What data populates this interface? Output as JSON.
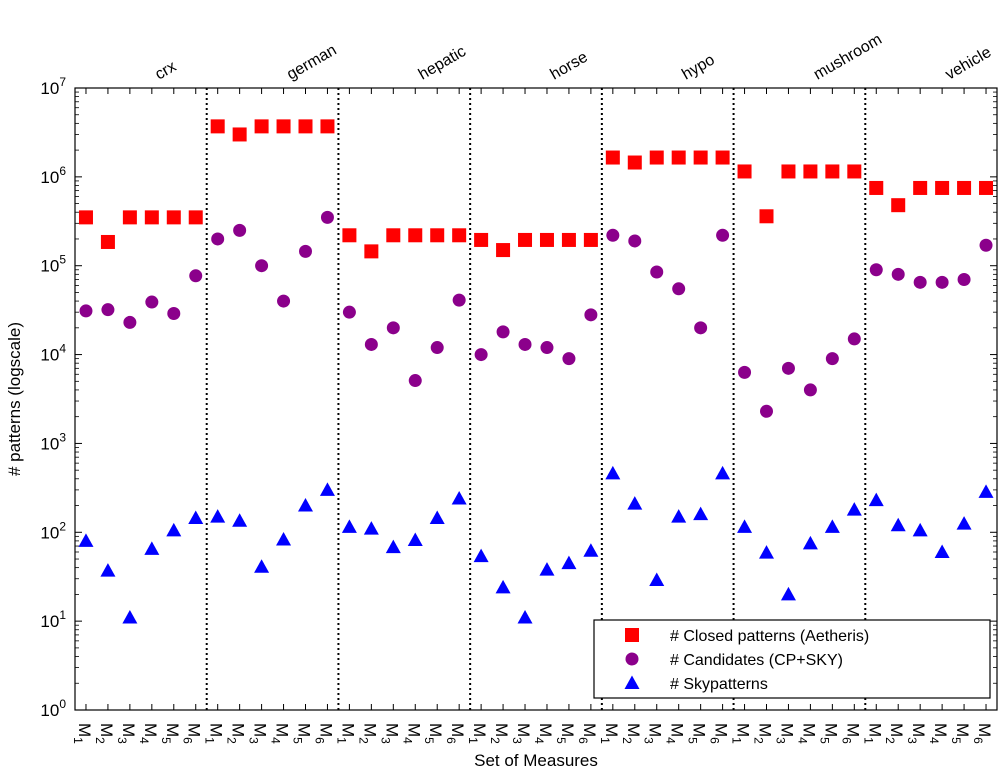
{
  "chart_data": {
    "type": "scatter",
    "ylabel": "# patterns (logscale)",
    "xlabel": "Set of Measures",
    "y_scale": "log",
    "ylim": [
      1,
      10000000
    ],
    "y_ticks": [
      {
        "value": 1,
        "base": "10",
        "exp": "0"
      },
      {
        "value": 10,
        "base": "10",
        "exp": "1"
      },
      {
        "value": 100,
        "base": "10",
        "exp": "2"
      },
      {
        "value": 1000,
        "base": "10",
        "exp": "3"
      },
      {
        "value": 10000,
        "base": "10",
        "exp": "4"
      },
      {
        "value": 100000,
        "base": "10",
        "exp": "5"
      },
      {
        "value": 1000000,
        "base": "10",
        "exp": "6"
      },
      {
        "value": 10000000,
        "base": "10",
        "exp": "7"
      }
    ],
    "x_tick_prefix": "M",
    "measures": [
      "1",
      "2",
      "3",
      "4",
      "5",
      "6"
    ],
    "groups": [
      "crx",
      "german",
      "hepatic",
      "horse",
      "hypo",
      "mushroom",
      "vehicle"
    ],
    "legend_position": "bottom-right",
    "series": [
      {
        "name": "# Closed patterns (Aetheris)",
        "marker": "square",
        "color": "#ff0000",
        "values": [
          [
            350000,
            185000,
            350000,
            350000,
            350000,
            350000
          ],
          [
            3700000,
            3000000,
            3700000,
            3700000,
            3700000,
            3700000
          ],
          [
            220000,
            145000,
            220000,
            220000,
            220000,
            220000
          ],
          [
            195000,
            150000,
            195000,
            195000,
            195000,
            195000
          ],
          [
            1650000,
            1450000,
            1650000,
            1650000,
            1650000,
            1650000
          ],
          [
            1150000,
            360000,
            1150000,
            1150000,
            1150000,
            1150000
          ],
          [
            750000,
            480000,
            750000,
            750000,
            750000,
            750000
          ]
        ]
      },
      {
        "name": "# Candidates (CP+SKY)",
        "marker": "circle",
        "color": "#8b008b",
        "values": [
          [
            31000,
            32000,
            23000,
            39000,
            29000,
            77000
          ],
          [
            200000,
            250000,
            100000,
            40000,
            145000,
            350000
          ],
          [
            30000,
            13000,
            20000,
            5100,
            12000,
            41000
          ],
          [
            10000,
            18000,
            13000,
            12000,
            9000,
            28000
          ],
          [
            220000,
            190000,
            85000,
            55000,
            20000,
            220000
          ],
          [
            6300,
            2300,
            7000,
            4000,
            9000,
            15000
          ],
          [
            90000,
            80000,
            65000,
            65000,
            70000,
            170000
          ]
        ]
      },
      {
        "name": "# Skypatterns",
        "marker": "triangle",
        "color": "#0000ff",
        "values": [
          [
            80,
            37,
            11,
            65,
            105,
            145
          ],
          [
            150,
            135,
            41,
            83,
            200,
            300
          ],
          [
            115,
            110,
            68,
            82,
            145,
            240
          ],
          [
            54,
            24,
            11,
            38,
            45,
            62
          ],
          [
            460,
            210,
            29,
            150,
            160,
            460
          ],
          [
            115,
            59,
            20,
            75,
            115,
            180
          ],
          [
            230,
            120,
            105,
            60,
            125,
            285
          ]
        ]
      }
    ]
  }
}
